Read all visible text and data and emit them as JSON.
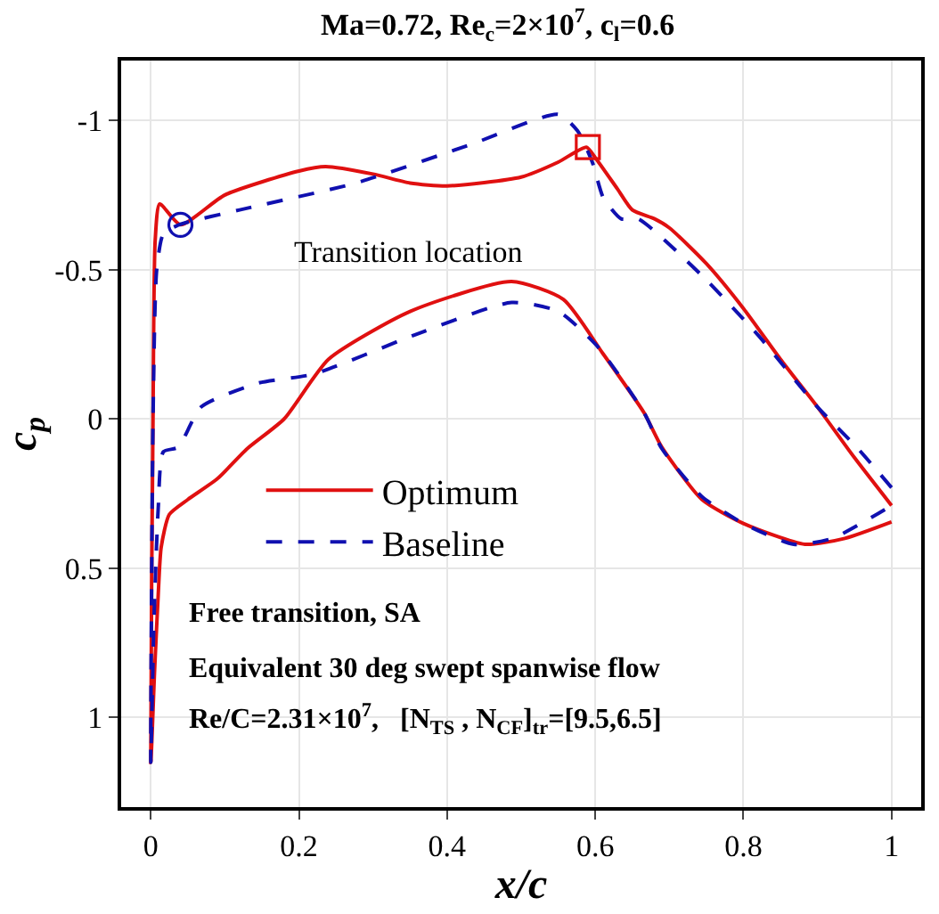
{
  "chart_data": {
    "type": "line",
    "title": "Ma=0.72, Re$_{c}$=2×10$^{7}$, c$_{l}$=0.6",
    "xlabel": "x/c",
    "ylabel": "c$_{p}$",
    "xlim": [
      -0.04,
      1.04
    ],
    "ylim": [
      1.3,
      -1.2
    ],
    "xticks": [
      0,
      0.2,
      0.4,
      0.6,
      0.8,
      1
    ],
    "yticks": [
      -1,
      -0.5,
      0,
      0.5,
      1
    ],
    "grid": true,
    "legend": "left",
    "annotations": [
      "Transition location",
      "Free transition, SA",
      "Equivalent 30 deg swept spanwise flow",
      "Re/C=2.31×10$^{7}$,   [N$_{TS}$ , N$_{CF}$]$_{tr}$=[9.5,6.5]"
    ],
    "series": [
      {
        "name": "Optimum",
        "color": "#e01010",
        "line_style": "solid",
        "marker": "none",
        "x": [
          1.0,
          0.95,
          0.9,
          0.85,
          0.8,
          0.75,
          0.7,
          0.68,
          0.65,
          0.63,
          0.6,
          0.588,
          0.55,
          0.5,
          0.4,
          0.35,
          0.3,
          0.236,
          0.2,
          0.1,
          0.04,
          0.012,
          0.006,
          0.003,
          0,
          0.005,
          0.01,
          0.014,
          0.025,
          0.05,
          0.09,
          0.13,
          0.18,
          0.24,
          0.35,
          0.487,
          0.557,
          0.61,
          0.666,
          0.69,
          0.744,
          0.8,
          0.883,
          0.937,
          1.0
        ],
        "values": [
          0.29,
          0.13,
          -0.04,
          -0.2,
          -0.37,
          -0.52,
          -0.64,
          -0.67,
          -0.7,
          -0.77,
          -0.875,
          -0.91,
          -0.86,
          -0.81,
          -0.78,
          -0.79,
          -0.82,
          -0.845,
          -0.83,
          -0.75,
          -0.65,
          -0.72,
          -0.6,
          0,
          1.15,
          0.85,
          0.59,
          0.43,
          0.32,
          0.27,
          0.2,
          0.1,
          0,
          -0.2,
          -0.36,
          -0.46,
          -0.4,
          -0.22,
          -0.02,
          0.095,
          0.27,
          0.35,
          0.42,
          0.4,
          0.345
        ]
      },
      {
        "name": "Baseline",
        "color": "#1010b0",
        "line_style": "dashed",
        "marker": "none",
        "x": [
          1.0,
          0.953,
          0.9,
          0.82,
          0.744,
          0.658,
          0.635,
          0.611,
          0.596,
          0.576,
          0.55,
          0.433,
          0.277,
          0.12,
          0.038,
          0.017,
          0.008,
          0.003,
          0,
          0.004,
          0.01,
          0.017,
          0.037,
          0.068,
          0.145,
          0.22,
          0.355,
          0.487,
          0.55,
          0.604,
          0.666,
          0.69,
          0.744,
          0.8,
          0.868,
          0.92,
          1.0
        ],
        "values": [
          0.23,
          0.095,
          -0.04,
          -0.28,
          -0.48,
          -0.67,
          -0.67,
          -0.74,
          -0.86,
          -0.965,
          -1.02,
          -0.92,
          -0.79,
          -0.7,
          -0.65,
          -0.62,
          -0.5,
          0,
          1.15,
          0.7,
          0.3,
          0.11,
          0.095,
          -0.04,
          -0.12,
          -0.15,
          -0.28,
          -0.39,
          -0.36,
          -0.24,
          -0.02,
          0.1,
          0.26,
          0.35,
          0.42,
          0.4,
          0.29
        ]
      },
      {
        "type": "scatter",
        "color": "#1010b0",
        "marker": "circle",
        "x": [
          0.04
        ],
        "values": [
          -0.65
        ]
      },
      {
        "type": "scatter",
        "color": "#e01010",
        "marker": "square",
        "x": [
          0.59
        ],
        "values": [
          -0.91
        ]
      }
    ]
  }
}
